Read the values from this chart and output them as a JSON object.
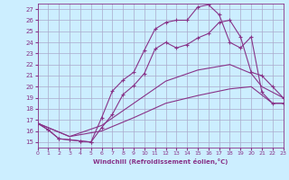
{
  "xlabel": "Windchill (Refroidissement éolien,°C)",
  "background_color": "#cceeff",
  "grid_color": "#aaaacc",
  "line_color": "#883388",
  "xlim": [
    0,
    23
  ],
  "ylim": [
    14.5,
    27.5
  ],
  "yticks": [
    15,
    16,
    17,
    18,
    19,
    20,
    21,
    22,
    23,
    24,
    25,
    26,
    27
  ],
  "xticks": [
    0,
    1,
    2,
    3,
    4,
    5,
    6,
    7,
    8,
    9,
    10,
    11,
    12,
    13,
    14,
    15,
    16,
    17,
    18,
    19,
    20,
    21,
    22,
    23
  ],
  "series": [
    {
      "x": [
        0,
        1,
        2,
        3,
        4,
        5,
        6,
        7,
        8,
        9,
        10,
        11,
        12,
        13,
        14,
        15,
        16,
        17,
        18,
        19,
        20,
        21,
        22,
        23
      ],
      "y": [
        16.7,
        16.1,
        15.3,
        15.2,
        15.1,
        15.0,
        17.2,
        19.6,
        20.6,
        21.3,
        23.3,
        25.2,
        25.8,
        26.0,
        26.0,
        27.2,
        27.4,
        26.5,
        24.0,
        23.5,
        24.5,
        19.5,
        18.5,
        18.5
      ],
      "has_markers": true,
      "linestyle": "-"
    },
    {
      "x": [
        0,
        1,
        2,
        3,
        4,
        5,
        6,
        7,
        8,
        9,
        10,
        11,
        12,
        13,
        14,
        15,
        16,
        17,
        18,
        19,
        20,
        21,
        22,
        23
      ],
      "y": [
        16.7,
        16.1,
        15.3,
        15.2,
        15.1,
        15.0,
        16.3,
        17.5,
        19.3,
        20.1,
        21.2,
        23.4,
        24.0,
        23.5,
        23.8,
        24.4,
        24.8,
        25.8,
        26.0,
        24.5,
        21.3,
        21.0,
        20.0,
        19.0
      ],
      "has_markers": true,
      "linestyle": "-"
    },
    {
      "x": [
        0,
        3,
        6,
        9,
        12,
        15,
        18,
        20,
        21,
        22,
        23
      ],
      "y": [
        16.7,
        15.5,
        16.5,
        18.5,
        20.5,
        21.5,
        22.0,
        21.2,
        20.0,
        19.5,
        19.0
      ],
      "has_markers": false,
      "linestyle": "-"
    },
    {
      "x": [
        0,
        3,
        6,
        9,
        12,
        15,
        18,
        20,
        22,
        23
      ],
      "y": [
        16.7,
        15.5,
        16.0,
        17.2,
        18.5,
        19.2,
        19.8,
        20.0,
        18.5,
        18.5
      ],
      "has_markers": false,
      "linestyle": "-"
    }
  ]
}
